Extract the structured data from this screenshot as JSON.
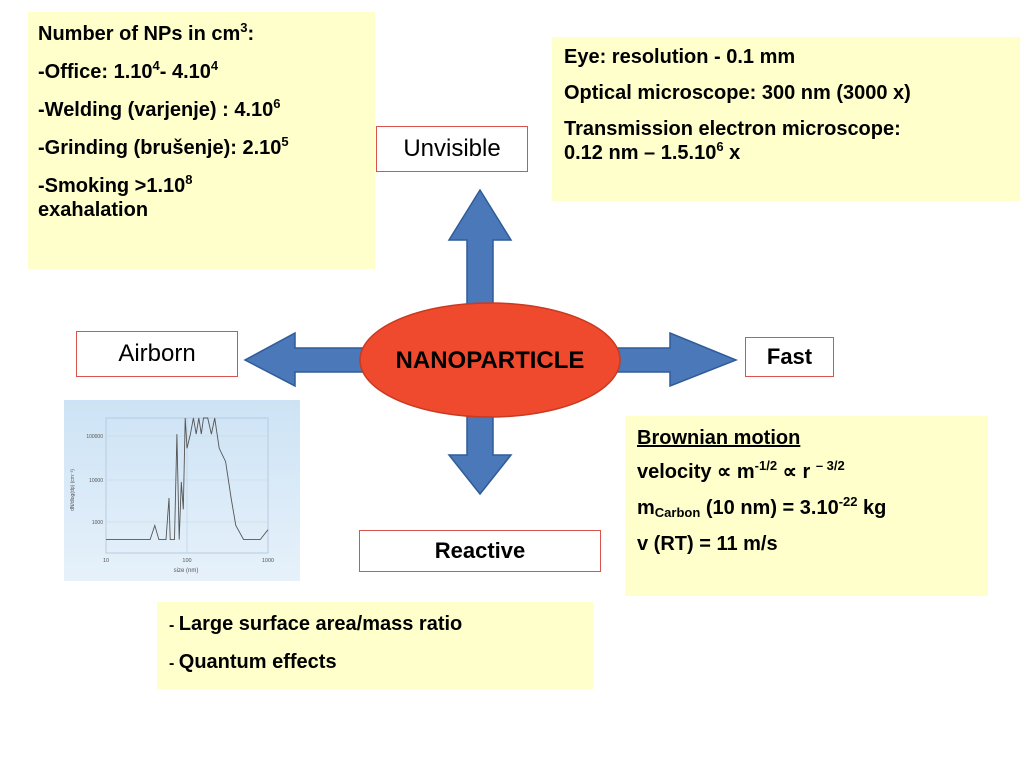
{
  "center": {
    "label": "NANOPARTICLE",
    "fill": "#f04a2e"
  },
  "labels": {
    "top": "Unvisible",
    "left": "Airborn",
    "right": "Fast",
    "bottom": "Reactive"
  },
  "np_count": {
    "title_pre": "Number of NPs in cm",
    "title_sup": "3",
    "title_post": ":",
    "items": [
      {
        "dash": "-",
        "pre": "Office: 1.10",
        "sup1": "4",
        "mid": "- 4.10",
        "sup2": "4"
      },
      {
        "dash": "-",
        "pre": "Welding (varjenje) : 4.10",
        "sup1": "6"
      },
      {
        "dash": "-",
        "pre": "Grinding (brušenje): 2.10",
        "sup1": "5"
      },
      {
        "dash": "-",
        "pre": "Smoking >1.10",
        "sup1": "8",
        "line2": "exahalation"
      }
    ]
  },
  "resolution": {
    "lines": [
      "Eye: resolution - 0.1 mm",
      "Optical microscope: 300 nm (3000 x)",
      "Transmission electron microscope:"
    ],
    "tem_pre": "0.12 nm – 1.5.10",
    "tem_sup": "6",
    "tem_post": " x"
  },
  "brownian": {
    "title": "Brownian motion",
    "velocity_pre": "velocity ∝ m",
    "velocity_sup1": "-1/2",
    "velocity_mid": " ∝  r ",
    "velocity_sup2": "– 3/2",
    "mass_pre": "m",
    "mass_sub": "Carbon",
    "mass_mid": " (10 nm) = 3.10",
    "mass_sup": "-22",
    "mass_post": " kg",
    "v_rt": "v (RT) = 11 m/s"
  },
  "properties": {
    "items": [
      {
        "dash": "- ",
        "text": "Large surface area/mass ratio"
      },
      {
        "dash": "- ",
        "text": "Quantum effects"
      }
    ]
  },
  "chart_data": {
    "type": "line",
    "title": "",
    "xlabel": "size (nm)",
    "ylabel": "dN/dlog(dp) (cm⁻³)",
    "x_scale": "log",
    "y_scale": "log",
    "xlim": [
      10,
      1000
    ],
    "ylim": [
      5000,
      150000
    ],
    "x_ticks": [
      "10",
      "100",
      "1000"
    ],
    "y_ticks": [
      "100000",
      "10000",
      "1000"
    ],
    "series": [
      {
        "x": [
          10,
          30,
          35,
          40,
          45,
          48,
          55,
          60,
          62,
          70,
          75,
          80,
          85,
          90,
          95,
          100,
          110,
          120,
          130,
          140,
          150,
          160,
          180,
          200,
          220,
          250,
          300,
          350,
          400,
          500,
          600,
          700,
          800,
          1000
        ],
        "y": [
          7000,
          7000,
          7000,
          10000,
          7000,
          7000,
          7000,
          20000,
          7000,
          7000,
          100000,
          7000,
          30000,
          15000,
          200000,
          70000,
          100000,
          200000,
          100000,
          200000,
          100000,
          150000,
          200000,
          100000,
          150000,
          70000,
          50000,
          20000,
          10000,
          7000,
          7000,
          7000,
          7000,
          9000
        ]
      }
    ]
  }
}
